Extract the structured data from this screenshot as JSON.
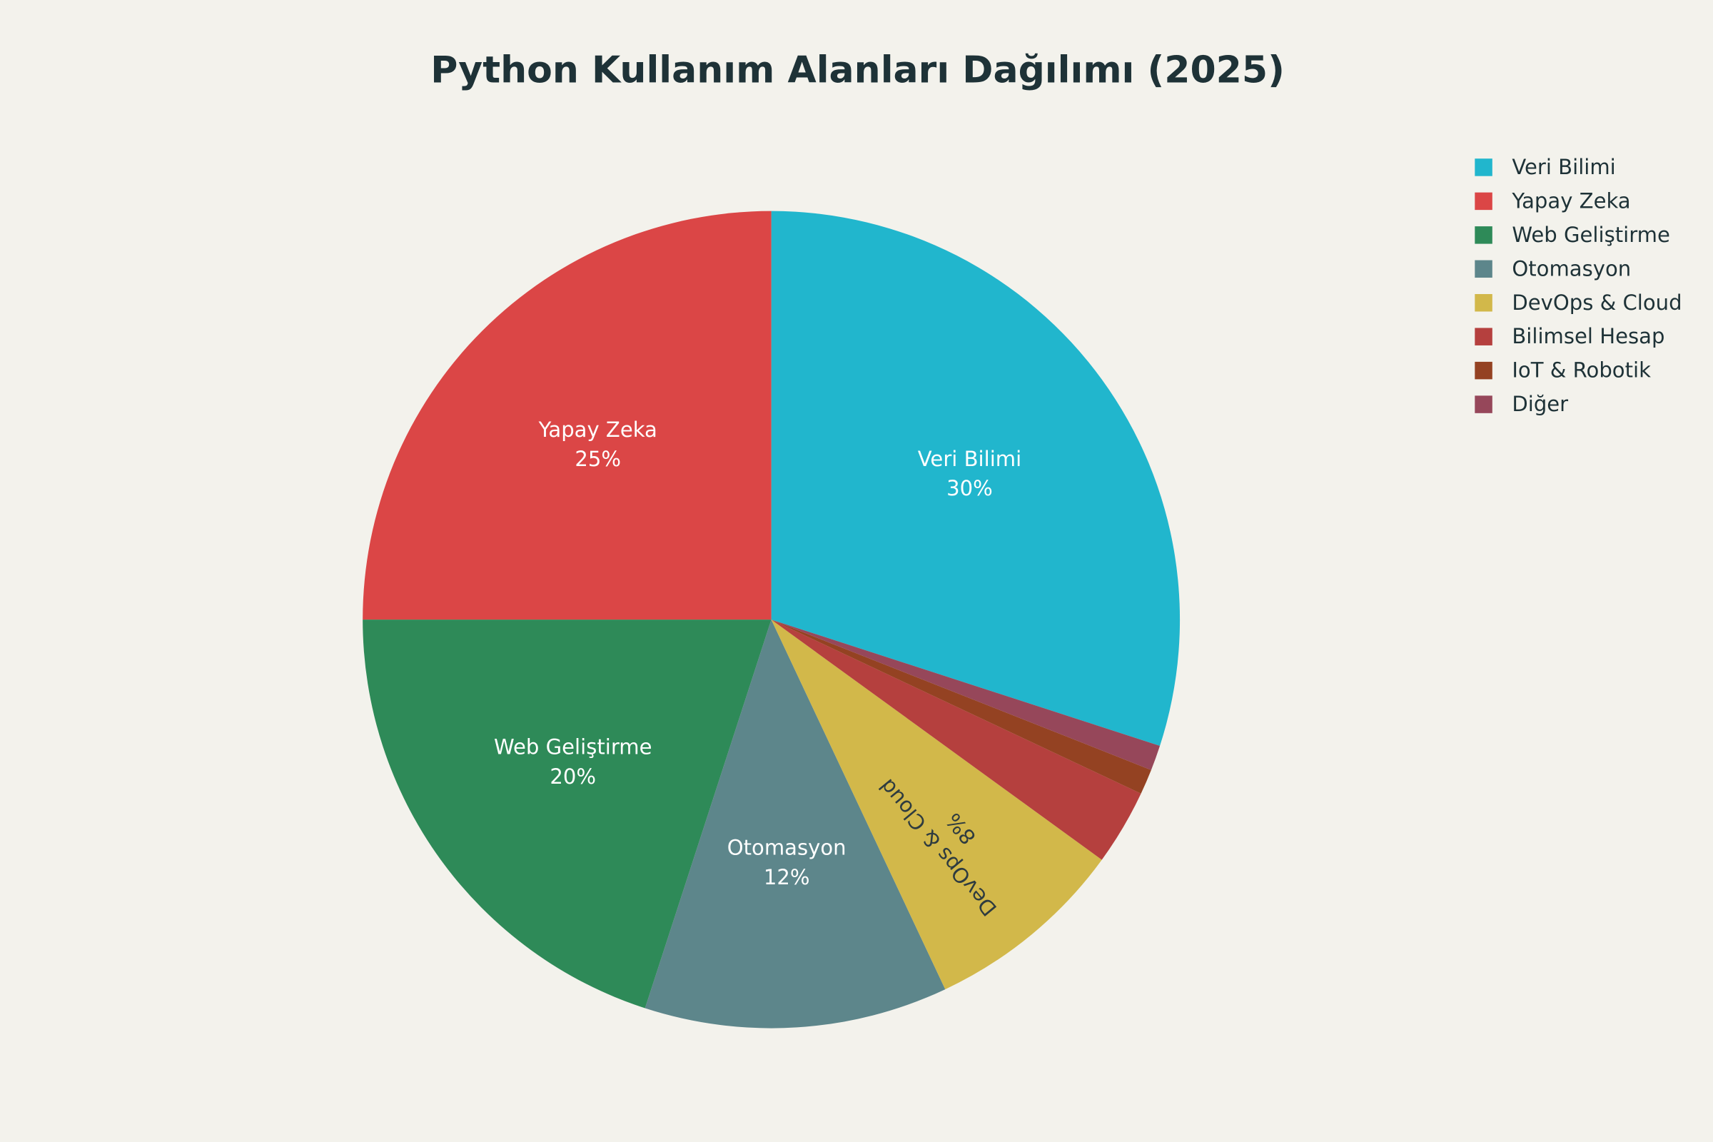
{
  "chart_data": {
    "type": "pie",
    "title": "Python Kullanım Alanları Dağılımı (2025)",
    "categories": [
      "Veri Bilimi",
      "Yapay Zeka",
      "Web Geliştirme",
      "Otomasyon",
      "DevOps & Cloud",
      "Bilimsel Hesap",
      "IoT & Robotik",
      "Diğer"
    ],
    "values": [
      30,
      25,
      20,
      12,
      8,
      3,
      1,
      1
    ],
    "value_labels": [
      "30%",
      "25%",
      "20%",
      "12%",
      "8%",
      null,
      null,
      null
    ],
    "colors": [
      "#21b6cd",
      "#db4646",
      "#2e8a58",
      "#5d868b",
      "#d2b84a",
      "#b5403e",
      "#944222",
      "#96475a"
    ],
    "legend": "top-right"
  }
}
